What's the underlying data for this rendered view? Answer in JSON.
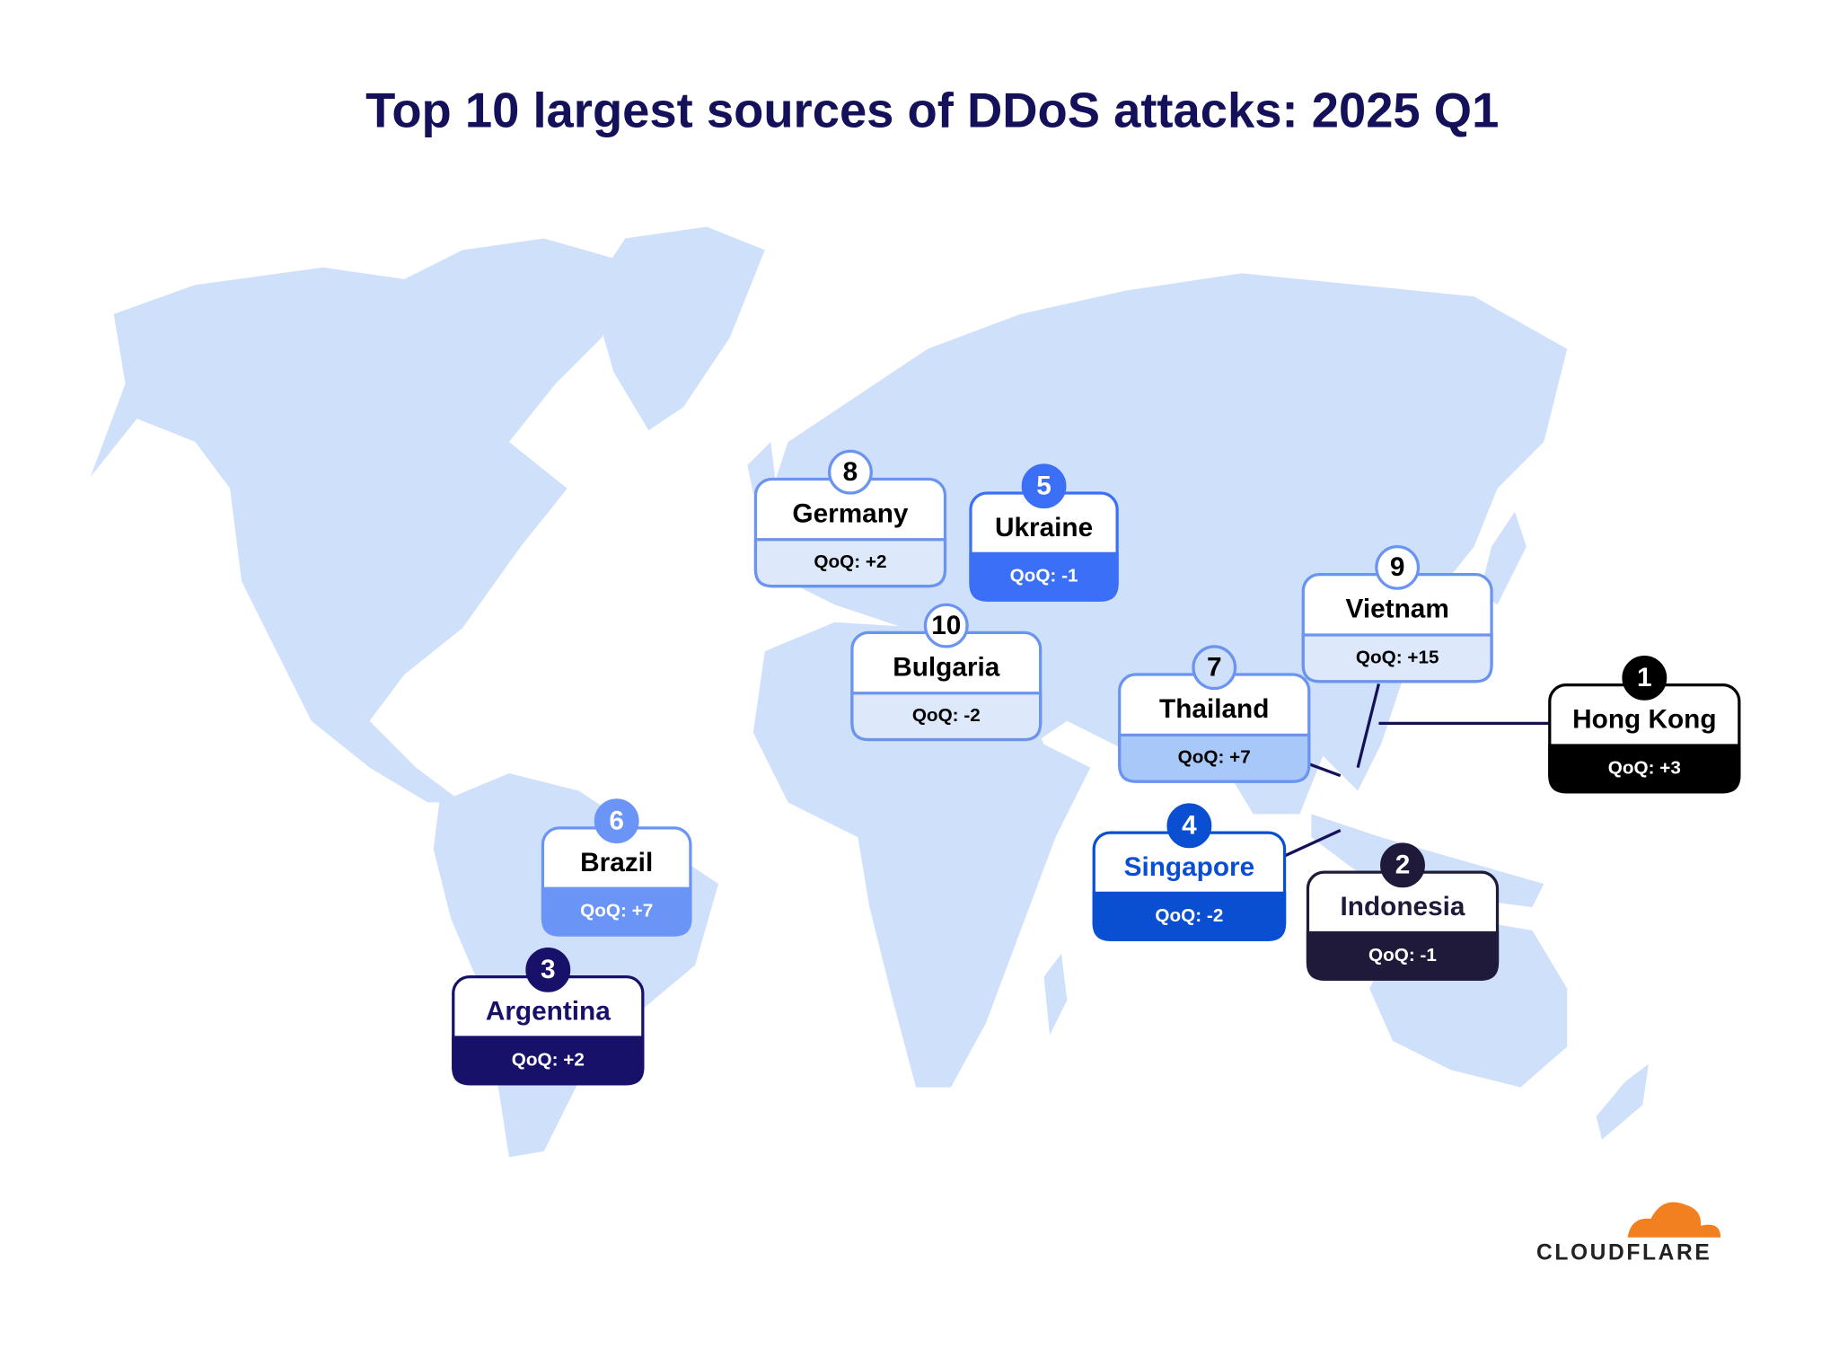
{
  "title": "Top 10 largest sources of DDoS attacks: 2025 Q1",
  "entries": [
    {
      "rank": 1,
      "country": "Hong Kong",
      "change": "QoQ: +3"
    },
    {
      "rank": 2,
      "country": "Indonesia",
      "change": "QoQ: -1"
    },
    {
      "rank": 3,
      "country": "Argentina",
      "change": "QoQ: +2"
    },
    {
      "rank": 4,
      "country": "Singapore",
      "change": "QoQ: -2"
    },
    {
      "rank": 5,
      "country": "Ukraine",
      "change": "QoQ: -1"
    },
    {
      "rank": 6,
      "country": "Brazil",
      "change": "QoQ: +7"
    },
    {
      "rank": 7,
      "country": "Thailand",
      "change": "QoQ: +7"
    },
    {
      "rank": 8,
      "country": "Germany",
      "change": "QoQ: +2"
    },
    {
      "rank": 9,
      "country": "Vietnam",
      "change": "QoQ: +15"
    },
    {
      "rank": 10,
      "country": "Bulgaria",
      "change": "QoQ: -2"
    }
  ],
  "logo": "CLOUDFLARE"
}
